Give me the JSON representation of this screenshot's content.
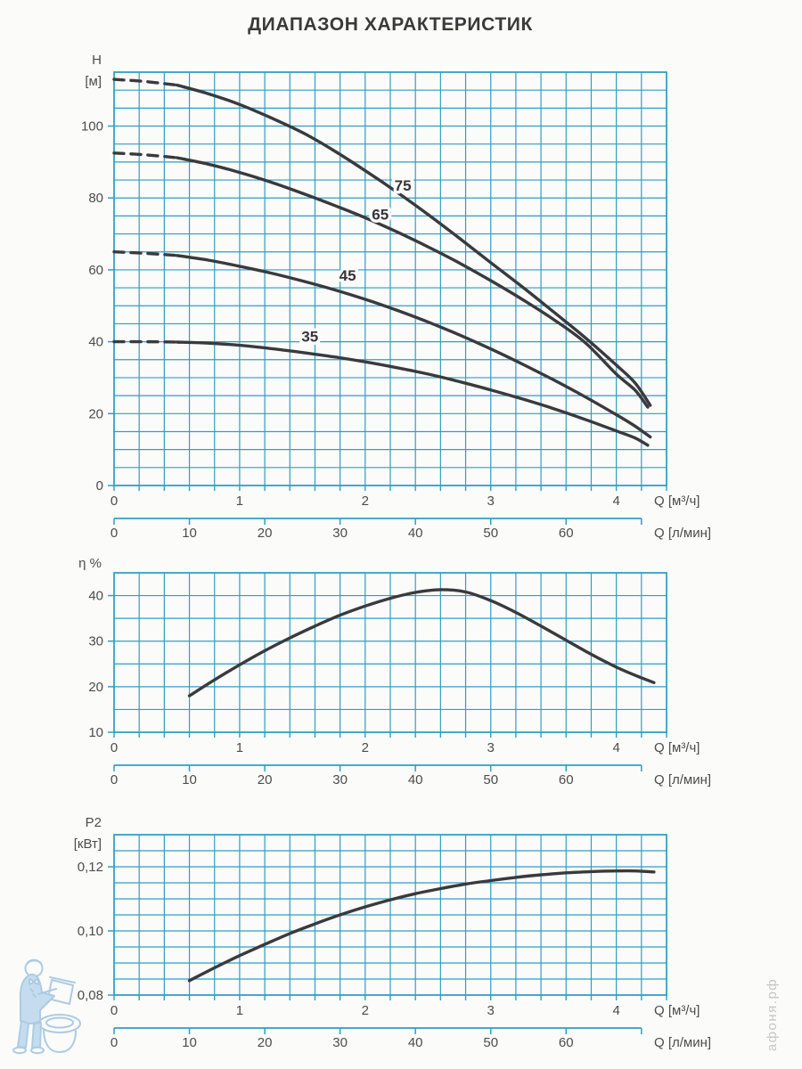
{
  "title": "ДИАПАЗОН ХАРАКТЕРИСТИК",
  "watermark": {
    "site_text": "афоня.рф"
  },
  "colors": {
    "grid": "#2f9fc3",
    "curve": "#3a3a3e",
    "text": "#4c4c4c",
    "watermark_blue": "#a9c9e2",
    "watermark_gray": "#c7c7c7"
  },
  "chart_data": [
    {
      "id": "head",
      "type": "line",
      "ylabel_lines": [
        "H",
        "[м]"
      ],
      "xlabel": "Q [м³/ч]",
      "xlabel2": "Q [л/мин]",
      "xlim": [
        0,
        4.4
      ],
      "ylim": [
        0,
        115
      ],
      "x_minor_step": 0.2,
      "y_minor_step": 5,
      "x_ticks": [
        {
          "v": 0,
          "t": "0"
        },
        {
          "v": 1,
          "t": "1"
        },
        {
          "v": 2,
          "t": "2"
        },
        {
          "v": 3,
          "t": "3"
        },
        {
          "v": 4,
          "t": "4"
        }
      ],
      "y_ticks": [
        {
          "v": 0,
          "t": "0"
        },
        {
          "v": 20,
          "t": "20"
        },
        {
          "v": 40,
          "t": "40"
        },
        {
          "v": 60,
          "t": "60"
        },
        {
          "v": 80,
          "t": "80"
        },
        {
          "v": 100,
          "t": "100"
        }
      ],
      "x2_ticks": [
        {
          "v": 0,
          "t": "0"
        },
        {
          "v": 10,
          "t": "10"
        },
        {
          "v": 20,
          "t": "20"
        },
        {
          "v": 30,
          "t": "30"
        },
        {
          "v": 40,
          "t": "40"
        },
        {
          "v": 50,
          "t": "50"
        },
        {
          "v": 60,
          "t": "60"
        },
        {
          "v": 70,
          "t": ""
        }
      ],
      "series": [
        {
          "name": "75",
          "dash_until": 0.5,
          "label_pos": [
            2.3,
            83.5
          ],
          "points": [
            [
              0,
              113
            ],
            [
              0.25,
              112.4
            ],
            [
              0.5,
              111.4
            ],
            [
              0.75,
              109
            ],
            [
              1,
              106
            ],
            [
              1.25,
              102.3
            ],
            [
              1.5,
              98.2
            ],
            [
              1.75,
              93.2
            ],
            [
              2,
              87.6
            ],
            [
              2.25,
              81.7
            ],
            [
              2.5,
              75.4
            ],
            [
              2.75,
              68.8
            ],
            [
              3,
              62
            ],
            [
              3.25,
              55.3
            ],
            [
              3.5,
              48.3
            ],
            [
              3.75,
              41.2
            ],
            [
              4,
              33.5
            ],
            [
              4.15,
              28.5
            ],
            [
              4.27,
              22.3
            ]
          ]
        },
        {
          "name": "65",
          "dash_until": 0.5,
          "label_pos": [
            2.12,
            75.5
          ],
          "points": [
            [
              0,
              92.5
            ],
            [
              0.25,
              92
            ],
            [
              0.5,
              91.2
            ],
            [
              0.75,
              89.4
            ],
            [
              1,
              87.1
            ],
            [
              1.25,
              84.4
            ],
            [
              1.5,
              81.3
            ],
            [
              1.75,
              78
            ],
            [
              2,
              74.5
            ],
            [
              2.25,
              70.6
            ],
            [
              2.5,
              66.4
            ],
            [
              2.75,
              61.9
            ],
            [
              3,
              57
            ],
            [
              3.25,
              51.8
            ],
            [
              3.5,
              46.2
            ],
            [
              3.75,
              39.8
            ],
            [
              4,
              31
            ],
            [
              4.15,
              26.5
            ],
            [
              4.25,
              21.8
            ]
          ]
        },
        {
          "name": "45",
          "dash_until": 0.5,
          "label_pos": [
            1.86,
            58.5
          ],
          "points": [
            [
              0,
              65
            ],
            [
              0.25,
              64.6
            ],
            [
              0.5,
              64
            ],
            [
              0.75,
              62.7
            ],
            [
              1,
              61
            ],
            [
              1.25,
              59.1
            ],
            [
              1.5,
              56.9
            ],
            [
              1.75,
              54.5
            ],
            [
              2,
              51.8
            ],
            [
              2.25,
              48.8
            ],
            [
              2.5,
              45.5
            ],
            [
              2.75,
              41.9
            ],
            [
              3,
              38
            ],
            [
              3.25,
              33.8
            ],
            [
              3.5,
              29.4
            ],
            [
              3.75,
              24.7
            ],
            [
              4,
              19.7
            ],
            [
              4.15,
              16.5
            ],
            [
              4.27,
              13.5
            ]
          ]
        },
        {
          "name": "35",
          "dash_until": 0.5,
          "label_pos": [
            1.56,
            41.5
          ],
          "points": [
            [
              0,
              40
            ],
            [
              0.25,
              40
            ],
            [
              0.5,
              39.9
            ],
            [
              0.75,
              39.6
            ],
            [
              1,
              39
            ],
            [
              1.25,
              38.1
            ],
            [
              1.5,
              37
            ],
            [
              1.75,
              35.8
            ],
            [
              2,
              34.4
            ],
            [
              2.25,
              32.8
            ],
            [
              2.5,
              31
            ],
            [
              2.75,
              28.9
            ],
            [
              3,
              26.6
            ],
            [
              3.25,
              24.1
            ],
            [
              3.5,
              21.4
            ],
            [
              3.75,
              18.4
            ],
            [
              4,
              15.2
            ],
            [
              4.15,
              13.2
            ],
            [
              4.25,
              11.2
            ]
          ]
        }
      ]
    },
    {
      "id": "efficiency",
      "type": "line",
      "ylabel_lines": [
        "η %"
      ],
      "xlabel": "Q [м³/ч]",
      "xlabel2": "Q [л/мин]",
      "xlim": [
        0,
        4.4
      ],
      "ylim": [
        10,
        45
      ],
      "x_minor_step": 0.2,
      "y_minor_step": 5,
      "x_ticks": [
        {
          "v": 0,
          "t": "0"
        },
        {
          "v": 1,
          "t": "1"
        },
        {
          "v": 2,
          "t": "2"
        },
        {
          "v": 3,
          "t": "3"
        },
        {
          "v": 4,
          "t": "4"
        }
      ],
      "y_ticks": [
        {
          "v": 10,
          "t": "10"
        },
        {
          "v": 20,
          "t": "20"
        },
        {
          "v": 30,
          "t": "30"
        },
        {
          "v": 40,
          "t": "40"
        }
      ],
      "x2_ticks": [
        {
          "v": 0,
          "t": "0"
        },
        {
          "v": 10,
          "t": "10"
        },
        {
          "v": 20,
          "t": "20"
        },
        {
          "v": 30,
          "t": "30"
        },
        {
          "v": 40,
          "t": "40"
        },
        {
          "v": 50,
          "t": "50"
        },
        {
          "v": 60,
          "t": "60"
        },
        {
          "v": 70,
          "t": ""
        }
      ],
      "series": [
        {
          "name": "eta",
          "dash_until": null,
          "label_pos": null,
          "points": [
            [
              0.6,
              18
            ],
            [
              0.8,
              21.5
            ],
            [
              1,
              24.8
            ],
            [
              1.2,
              27.9
            ],
            [
              1.4,
              30.7
            ],
            [
              1.6,
              33.3
            ],
            [
              1.8,
              35.7
            ],
            [
              2,
              37.7
            ],
            [
              2.2,
              39.4
            ],
            [
              2.4,
              40.7
            ],
            [
              2.6,
              41.3
            ],
            [
              2.8,
              40.8
            ],
            [
              3,
              38.9
            ],
            [
              3.2,
              36.3
            ],
            [
              3.4,
              33.3
            ],
            [
              3.6,
              30.2
            ],
            [
              3.8,
              27.1
            ],
            [
              4,
              24.3
            ],
            [
              4.15,
              22.5
            ],
            [
              4.3,
              20.9
            ]
          ]
        }
      ]
    },
    {
      "id": "power",
      "type": "line",
      "ylabel_lines": [
        "P2",
        "[кВт]"
      ],
      "xlabel": "Q [м³/ч]",
      "xlabel2": "Q [л/мин]",
      "xlim": [
        0,
        4.4
      ],
      "ylim": [
        0.08,
        0.13
      ],
      "x_minor_step": 0.2,
      "y_minor_step": 0.005,
      "x_ticks": [
        {
          "v": 0,
          "t": "0"
        },
        {
          "v": 1,
          "t": "1"
        },
        {
          "v": 2,
          "t": "2"
        },
        {
          "v": 3,
          "t": "3"
        },
        {
          "v": 4,
          "t": "4"
        }
      ],
      "y_ticks": [
        {
          "v": 0.08,
          "t": "0,08"
        },
        {
          "v": 0.1,
          "t": "0,10"
        },
        {
          "v": 0.12,
          "t": "0,12"
        }
      ],
      "x2_ticks": [
        {
          "v": 0,
          "t": "0"
        },
        {
          "v": 10,
          "t": "10"
        },
        {
          "v": 20,
          "t": "20"
        },
        {
          "v": 30,
          "t": "30"
        },
        {
          "v": 40,
          "t": "40"
        },
        {
          "v": 50,
          "t": "50"
        },
        {
          "v": 60,
          "t": "60"
        },
        {
          "v": 70,
          "t": ""
        }
      ],
      "series": [
        {
          "name": "p2",
          "dash_until": null,
          "label_pos": null,
          "points": [
            [
              0.6,
              0.0845
            ],
            [
              0.8,
              0.0885
            ],
            [
              1,
              0.0923
            ],
            [
              1.2,
              0.0958
            ],
            [
              1.4,
              0.0992
            ],
            [
              1.6,
              0.1022
            ],
            [
              1.8,
              0.105
            ],
            [
              2,
              0.1075
            ],
            [
              2.2,
              0.1097
            ],
            [
              2.4,
              0.1116
            ],
            [
              2.6,
              0.1132
            ],
            [
              2.8,
              0.1146
            ],
            [
              3,
              0.1157
            ],
            [
              3.2,
              0.1167
            ],
            [
              3.4,
              0.1175
            ],
            [
              3.6,
              0.1181
            ],
            [
              3.8,
              0.1185
            ],
            [
              4,
              0.1187
            ],
            [
              4.15,
              0.1187
            ],
            [
              4.3,
              0.1184
            ]
          ]
        }
      ]
    }
  ]
}
